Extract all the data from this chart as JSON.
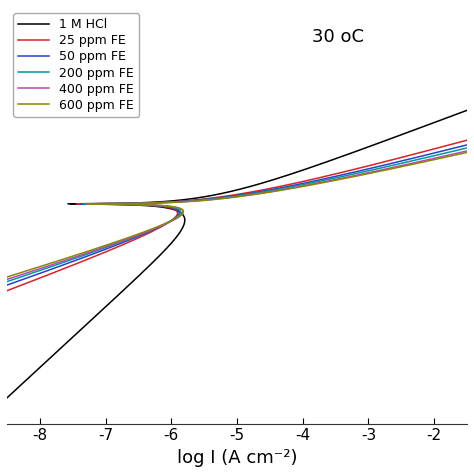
{
  "title": "30 oC",
  "xlabel": "log I (A cm⁻²)",
  "xlim": [
    -8.5,
    -1.5
  ],
  "ylim": [
    -0.58,
    0.52
  ],
  "background_color": "#ffffff",
  "series": [
    {
      "label": "1 M HCl",
      "color": "#000000",
      "log_icorr": -5.3,
      "ba": 0.065,
      "bc": 0.16
    },
    {
      "label": "25 ppm FE",
      "color": "#dd2222",
      "log_icorr": -4.95,
      "ba": 0.048,
      "bc": 0.065
    },
    {
      "label": "50 ppm FE",
      "color": "#2244cc",
      "log_icorr": -4.9,
      "ba": 0.045,
      "bc": 0.06
    },
    {
      "label": "200 ppm FE",
      "color": "#009999",
      "log_icorr": -4.87,
      "ba": 0.043,
      "bc": 0.057
    },
    {
      "label": "400 ppm FE",
      "color": "#bb44bb",
      "log_icorr": -4.85,
      "ba": 0.041,
      "bc": 0.055
    },
    {
      "label": "600 ppm FE",
      "color": "#888800",
      "log_icorr": -4.83,
      "ba": 0.04,
      "bc": 0.053
    }
  ],
  "legend_fontsize": 9,
  "tick_fontsize": 11,
  "label_fontsize": 13,
  "title_fontsize": 13,
  "xticks": [
    -8,
    -7,
    -6,
    -5,
    -4,
    -3,
    -2
  ]
}
